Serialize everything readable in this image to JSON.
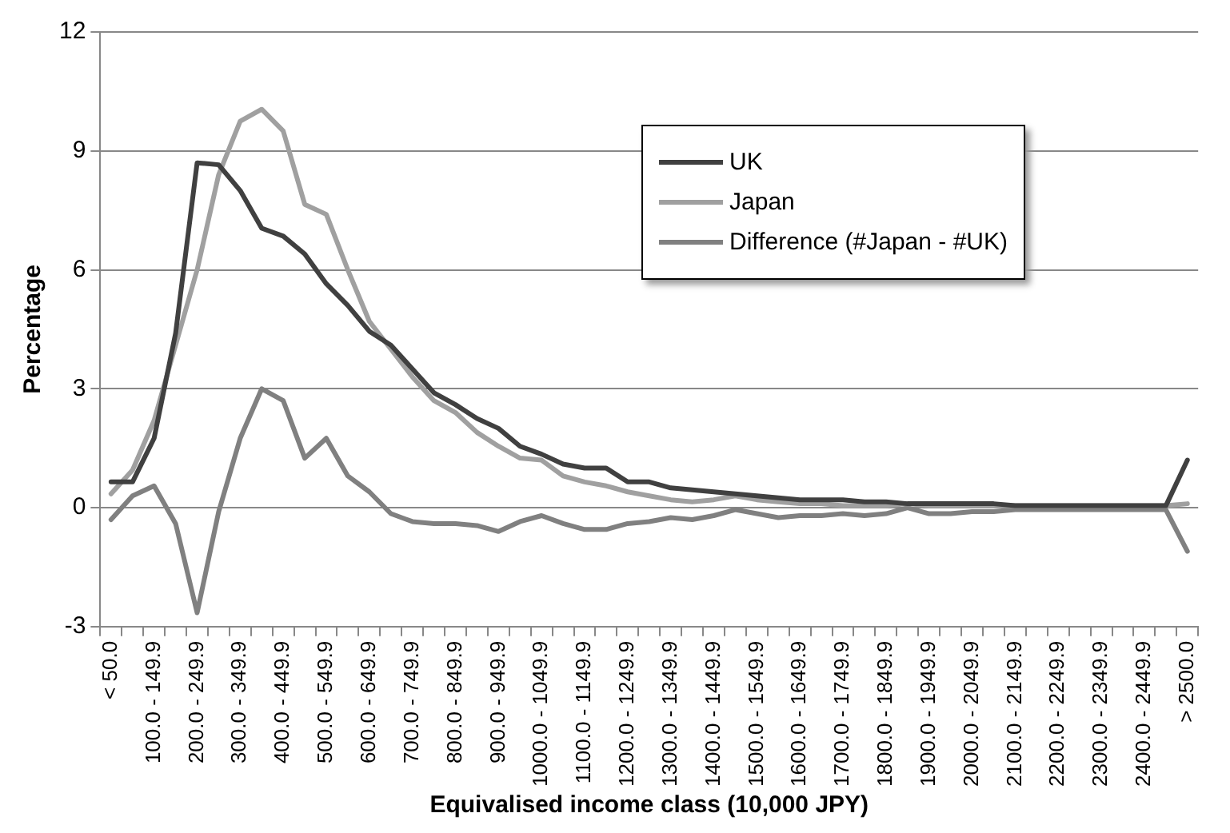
{
  "chart_data": {
    "type": "line",
    "xlabel": "Equivalised income class (10,000 JPY)",
    "ylabel": "Percentage",
    "categories": [
      "< 50.0",
      null,
      "100.0 - 149.9",
      null,
      "200.0 - 249.9",
      null,
      "300.0 - 349.9",
      null,
      "400.0 - 449.9",
      null,
      "500.0 - 549.9",
      null,
      "600.0 - 649.9",
      null,
      "700.0 - 749.9",
      null,
      "800.0 - 849.9",
      null,
      "900.0 - 949.9",
      null,
      "1000.0 - 1049.9",
      null,
      "1100.0 - 1149.9",
      null,
      "1200.0 - 1249.9",
      null,
      "1300.0 - 1349.9",
      null,
      "1400.0 - 1449.9",
      null,
      "1500.0 - 1549.9",
      null,
      "1600.0 - 1649.9",
      null,
      "1700.0 - 1749.9",
      null,
      "1800.0 - 1849.9",
      null,
      "1900.0 - 1949.9",
      null,
      "2000.0 - 2049.9",
      null,
      "2100.0 - 2149.9",
      null,
      "2200.0 - 2249.9",
      null,
      "2300.0 - 2349.9",
      null,
      "2400.0 - 2449.9",
      null,
      "> 2500.0"
    ],
    "series": [
      {
        "name": "UK",
        "color": "#404040",
        "values": [
          0.65,
          0.65,
          1.75,
          4.4,
          8.7,
          8.65,
          8.0,
          7.05,
          6.85,
          6.4,
          5.65,
          5.1,
          4.45,
          4.1,
          3.5,
          2.9,
          2.6,
          2.25,
          2.0,
          1.55,
          1.35,
          1.1,
          1.0,
          1.0,
          0.65,
          0.65,
          0.5,
          0.45,
          0.4,
          0.35,
          0.3,
          0.25,
          0.2,
          0.2,
          0.2,
          0.15,
          0.15,
          0.1,
          0.1,
          0.1,
          0.1,
          0.1,
          0.05,
          0.05,
          0.05,
          0.05,
          0.05,
          0.05,
          0.05,
          0.05,
          1.2
        ]
      },
      {
        "name": "Japan",
        "color": "#a0a0a0",
        "values": [
          0.35,
          0.95,
          2.2,
          4.1,
          6.0,
          8.4,
          9.75,
          10.05,
          9.5,
          7.65,
          7.4,
          6.0,
          4.7,
          4.0,
          3.3,
          2.7,
          2.4,
          1.9,
          1.55,
          1.25,
          1.2,
          0.8,
          0.65,
          0.55,
          0.4,
          0.3,
          0.2,
          0.15,
          0.2,
          0.3,
          0.2,
          0.15,
          0.1,
          0.1,
          0.05,
          0.05,
          0.05,
          0.1,
          0.05,
          0.05,
          0.05,
          0.05,
          0.05,
          0.05,
          0.05,
          0.05,
          0.05,
          0.05,
          0.05,
          0.05,
          0.1
        ]
      },
      {
        "name": "Difference (#Japan - #UK)",
        "color": "#808080",
        "values": [
          -0.3,
          0.3,
          0.55,
          -0.4,
          -2.65,
          -0.1,
          1.75,
          3.0,
          2.7,
          1.25,
          1.75,
          0.8,
          0.4,
          -0.15,
          -0.35,
          -0.4,
          -0.4,
          -0.45,
          -0.6,
          -0.35,
          -0.2,
          -0.4,
          -0.55,
          -0.55,
          -0.4,
          -0.35,
          -0.25,
          -0.3,
          -0.2,
          -0.05,
          -0.15,
          -0.25,
          -0.2,
          -0.2,
          -0.15,
          -0.2,
          -0.15,
          0.0,
          -0.15,
          -0.15,
          -0.1,
          -0.1,
          -0.05,
          -0.05,
          -0.05,
          -0.05,
          -0.05,
          -0.05,
          -0.05,
          -0.05,
          -1.1
        ]
      }
    ],
    "ylim": [
      -3,
      12
    ],
    "yticks": [
      -3,
      0,
      3,
      6,
      9,
      12
    ],
    "grid": "y",
    "legend": "top right",
    "marker": "none",
    "line_style": "solid"
  }
}
